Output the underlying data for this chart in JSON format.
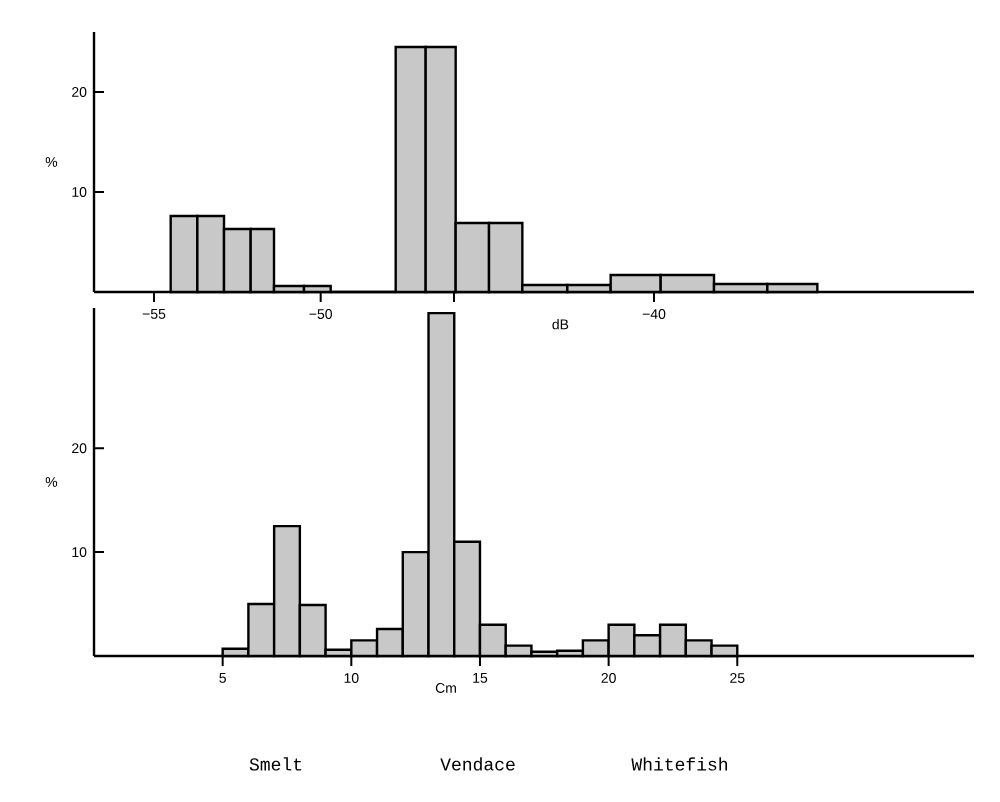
{
  "chart_data": [
    {
      "type": "histogram",
      "xlabel": "dB",
      "ylabel": "%",
      "color": "#c8c8c8",
      "bins": [
        -54.5,
        -53.7,
        -52.9,
        -52.1,
        -51.4,
        -50.5,
        -49.7,
        -47.75,
        -46.85,
        -45.95,
        -44.95,
        -43.95,
        -42.6,
        -41.3,
        -39.8,
        -38.2,
        -36.6,
        -35.1
      ],
      "values": [
        7.6,
        7.6,
        6.3,
        6.3,
        0.6,
        0.6,
        0,
        24.5,
        24.5,
        6.9,
        6.9,
        0.7,
        0.7,
        1.7,
        1.7,
        0.8,
        0.8
      ],
      "xlim": [
        -56.8,
        -30.4
      ],
      "ylim": [
        0,
        26
      ],
      "xticks": [
        {
          "value": -55,
          "label": "−55"
        },
        {
          "value": -50,
          "label": "−50"
        },
        {
          "value": -46,
          "label": null
        },
        {
          "value": -40,
          "label": "−40"
        }
      ],
      "yticks": [
        10,
        20
      ]
    },
    {
      "type": "histogram",
      "xlabel": "Cm",
      "ylabel": "%",
      "color": "#c8c8c8",
      "bins": [
        5,
        6,
        7,
        8,
        9,
        10,
        11,
        12,
        13,
        14,
        15,
        16,
        17,
        18,
        19,
        20,
        21,
        22,
        23,
        24,
        25
      ],
      "values": [
        0.7,
        5.0,
        12.5,
        4.9,
        0.6,
        1.5,
        2.6,
        10,
        33,
        11,
        3.0,
        1.0,
        0.4,
        0.5,
        1.5,
        3.0,
        2.0,
        3.0,
        1.5,
        1.0
      ],
      "xlim": [
        0,
        34.2
      ],
      "ylim": [
        0,
        33.5
      ],
      "xticks": [
        5,
        10,
        15,
        20,
        25
      ],
      "yticks": [
        10,
        20
      ],
      "annotations": [
        "Smelt",
        "Vendace",
        "Whitefish"
      ]
    }
  ]
}
